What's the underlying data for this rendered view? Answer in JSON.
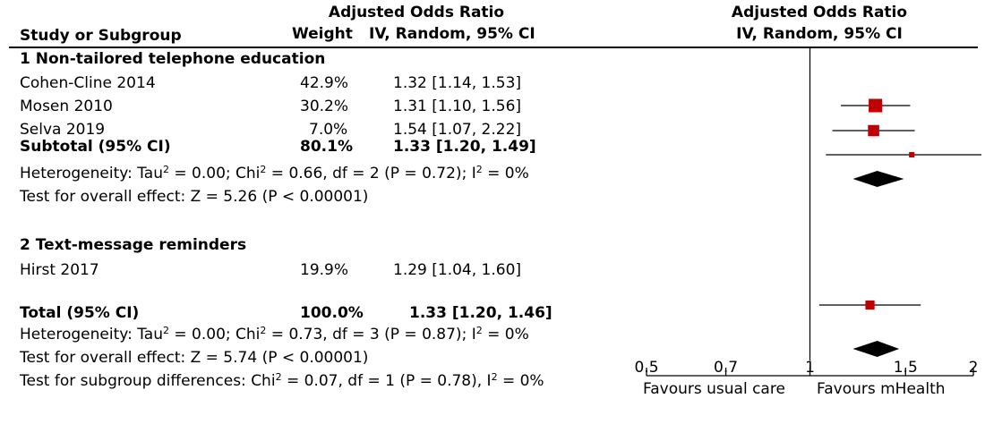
{
  "header": {
    "effect_measure": "Adjusted Odds Ratio",
    "col_study": "Study or Subgroup",
    "col_weight": "Weight",
    "col_ci": "IV, Random, 95% CI",
    "plot_measure": "Adjusted Odds Ratio",
    "plot_ci": "IV, Random, 95% CI"
  },
  "subgroups": [
    {
      "title": "1 Non-tailored telephone education",
      "studies": [
        {
          "name": "Cohen-Cline 2014",
          "weight": "42.9%",
          "ci_text": "1.32 [1.14, 1.53]"
        },
        {
          "name": "Mosen 2010",
          "weight": "30.2%",
          "ci_text": "1.31 [1.10, 1.56]"
        },
        {
          "name": "Selva 2019",
          "weight": "7.0%",
          "ci_text": "1.54 [1.07, 2.22]"
        }
      ],
      "subtotal": {
        "label": "Subtotal (95% CI)",
        "weight": "80.1%",
        "ci_text": "1.33 [1.20, 1.49]"
      },
      "heterogeneity": {
        "pre": "Heterogeneity: Tau",
        "a": " = 0.00; Chi",
        "b": " = 0.66, df = 2 (P = 0.72); I",
        "c": " = 0%",
        "sup": "2"
      },
      "overall": "Test for overall effect: Z = 5.26 (P < 0.00001)"
    },
    {
      "title": "2 Text-message reminders",
      "studies": [
        {
          "name": "Hirst 2017",
          "weight": "19.9%",
          "ci_text": "1.29 [1.04, 1.60]"
        }
      ]
    }
  ],
  "total": {
    "label": "Total (95% CI)",
    "weight": "100.0%",
    "ci_text": "1.33 [1.20, 1.46]",
    "heterogeneity": {
      "pre": "Heterogeneity: Tau",
      "a": " = 0.00; Chi",
      "b": " = 0.73, df = 3 (P = 0.87); I",
      "c": " = 0%",
      "sup": "2"
    },
    "overall": "Test for overall effect: Z = 5.74 (P < 0.00001)",
    "subgroup_diff": {
      "pre": "Test for subgroup differences: Chi",
      "a": " = 0.07, df = 1 (P = 0.78), I",
      "b": " = 0%",
      "sup": "2"
    }
  },
  "axis": {
    "ticks": [
      "0.5",
      "0.7",
      "1",
      "1.5",
      "2"
    ],
    "favours_left": "Favours usual care",
    "favours_right": "Favours mHealth"
  },
  "colors": {
    "marker": "#c00000",
    "line": "#000000"
  },
  "chart_data": {
    "type": "forest",
    "scale": "log",
    "xlim": [
      0.5,
      2
    ],
    "xticks": [
      0.5,
      0.7,
      1,
      1.5,
      2
    ],
    "null_line": 1,
    "studies": [
      {
        "name": "Cohen-Cline 2014",
        "or": 1.32,
        "lo": 1.14,
        "hi": 1.53,
        "weight": 42.9
      },
      {
        "name": "Mosen 2010",
        "or": 1.31,
        "lo": 1.1,
        "hi": 1.56,
        "weight": 30.2
      },
      {
        "name": "Selva 2019",
        "or": 1.54,
        "lo": 1.07,
        "hi": 2.22,
        "weight": 7.0
      },
      {
        "name": "Hirst 2017",
        "or": 1.29,
        "lo": 1.04,
        "hi": 1.6,
        "weight": 19.9
      }
    ],
    "pooled": [
      {
        "name": "Subtotal (95% CI)",
        "or": 1.33,
        "lo": 1.2,
        "hi": 1.49
      },
      {
        "name": "Total (95% CI)",
        "or": 1.33,
        "lo": 1.2,
        "hi": 1.46
      }
    ]
  }
}
